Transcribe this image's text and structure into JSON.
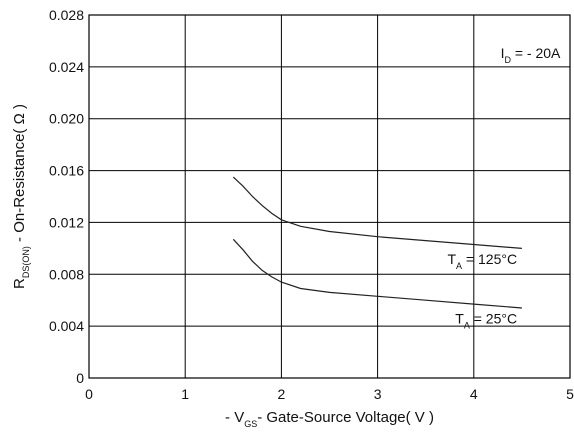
{
  "chart_data": {
    "type": "line",
    "xlabel_parts": {
      "pre": "- V",
      "sub": "GS",
      "post": "- Gate-Source Voltage( V )"
    },
    "ylabel_parts": {
      "pre": "R",
      "sub": "DS(ON)",
      "post": " - On-Resistance( Ω )"
    },
    "x_ticks": [
      "0",
      "1",
      "2",
      "3",
      "4",
      "5"
    ],
    "y_ticks": [
      "0",
      "0.004",
      "0.008",
      "0.012",
      "0.016",
      "0.020",
      "0.024",
      "0.028"
    ],
    "xlim": [
      0,
      5
    ],
    "ylim": [
      0,
      0.028
    ],
    "grid": true,
    "annotation_id": {
      "pre": "I",
      "sub": "D",
      "post": " = - 20A"
    },
    "series": [
      {
        "label": {
          "pre": "T",
          "sub": "A",
          "post": " = 125°C"
        },
        "x": [
          1.5,
          1.6,
          1.7,
          1.8,
          1.9,
          2.0,
          2.2,
          2.5,
          3.0,
          3.5,
          4.0,
          4.5
        ],
        "y": [
          0.0155,
          0.0148,
          0.014,
          0.0133,
          0.0127,
          0.0122,
          0.0117,
          0.0113,
          0.0109,
          0.0106,
          0.0103,
          0.01
        ]
      },
      {
        "label": {
          "pre": "T",
          "sub": "A",
          "post": " = 25°C"
        },
        "x": [
          1.5,
          1.6,
          1.7,
          1.8,
          1.9,
          2.0,
          2.2,
          2.5,
          3.0,
          3.5,
          4.0,
          4.5
        ],
        "y": [
          0.0107,
          0.0099,
          0.009,
          0.0083,
          0.0078,
          0.0074,
          0.0069,
          0.0066,
          0.0063,
          0.006,
          0.0057,
          0.0054
        ]
      }
    ],
    "line_color": "#222222",
    "grid_color": "#000000"
  }
}
